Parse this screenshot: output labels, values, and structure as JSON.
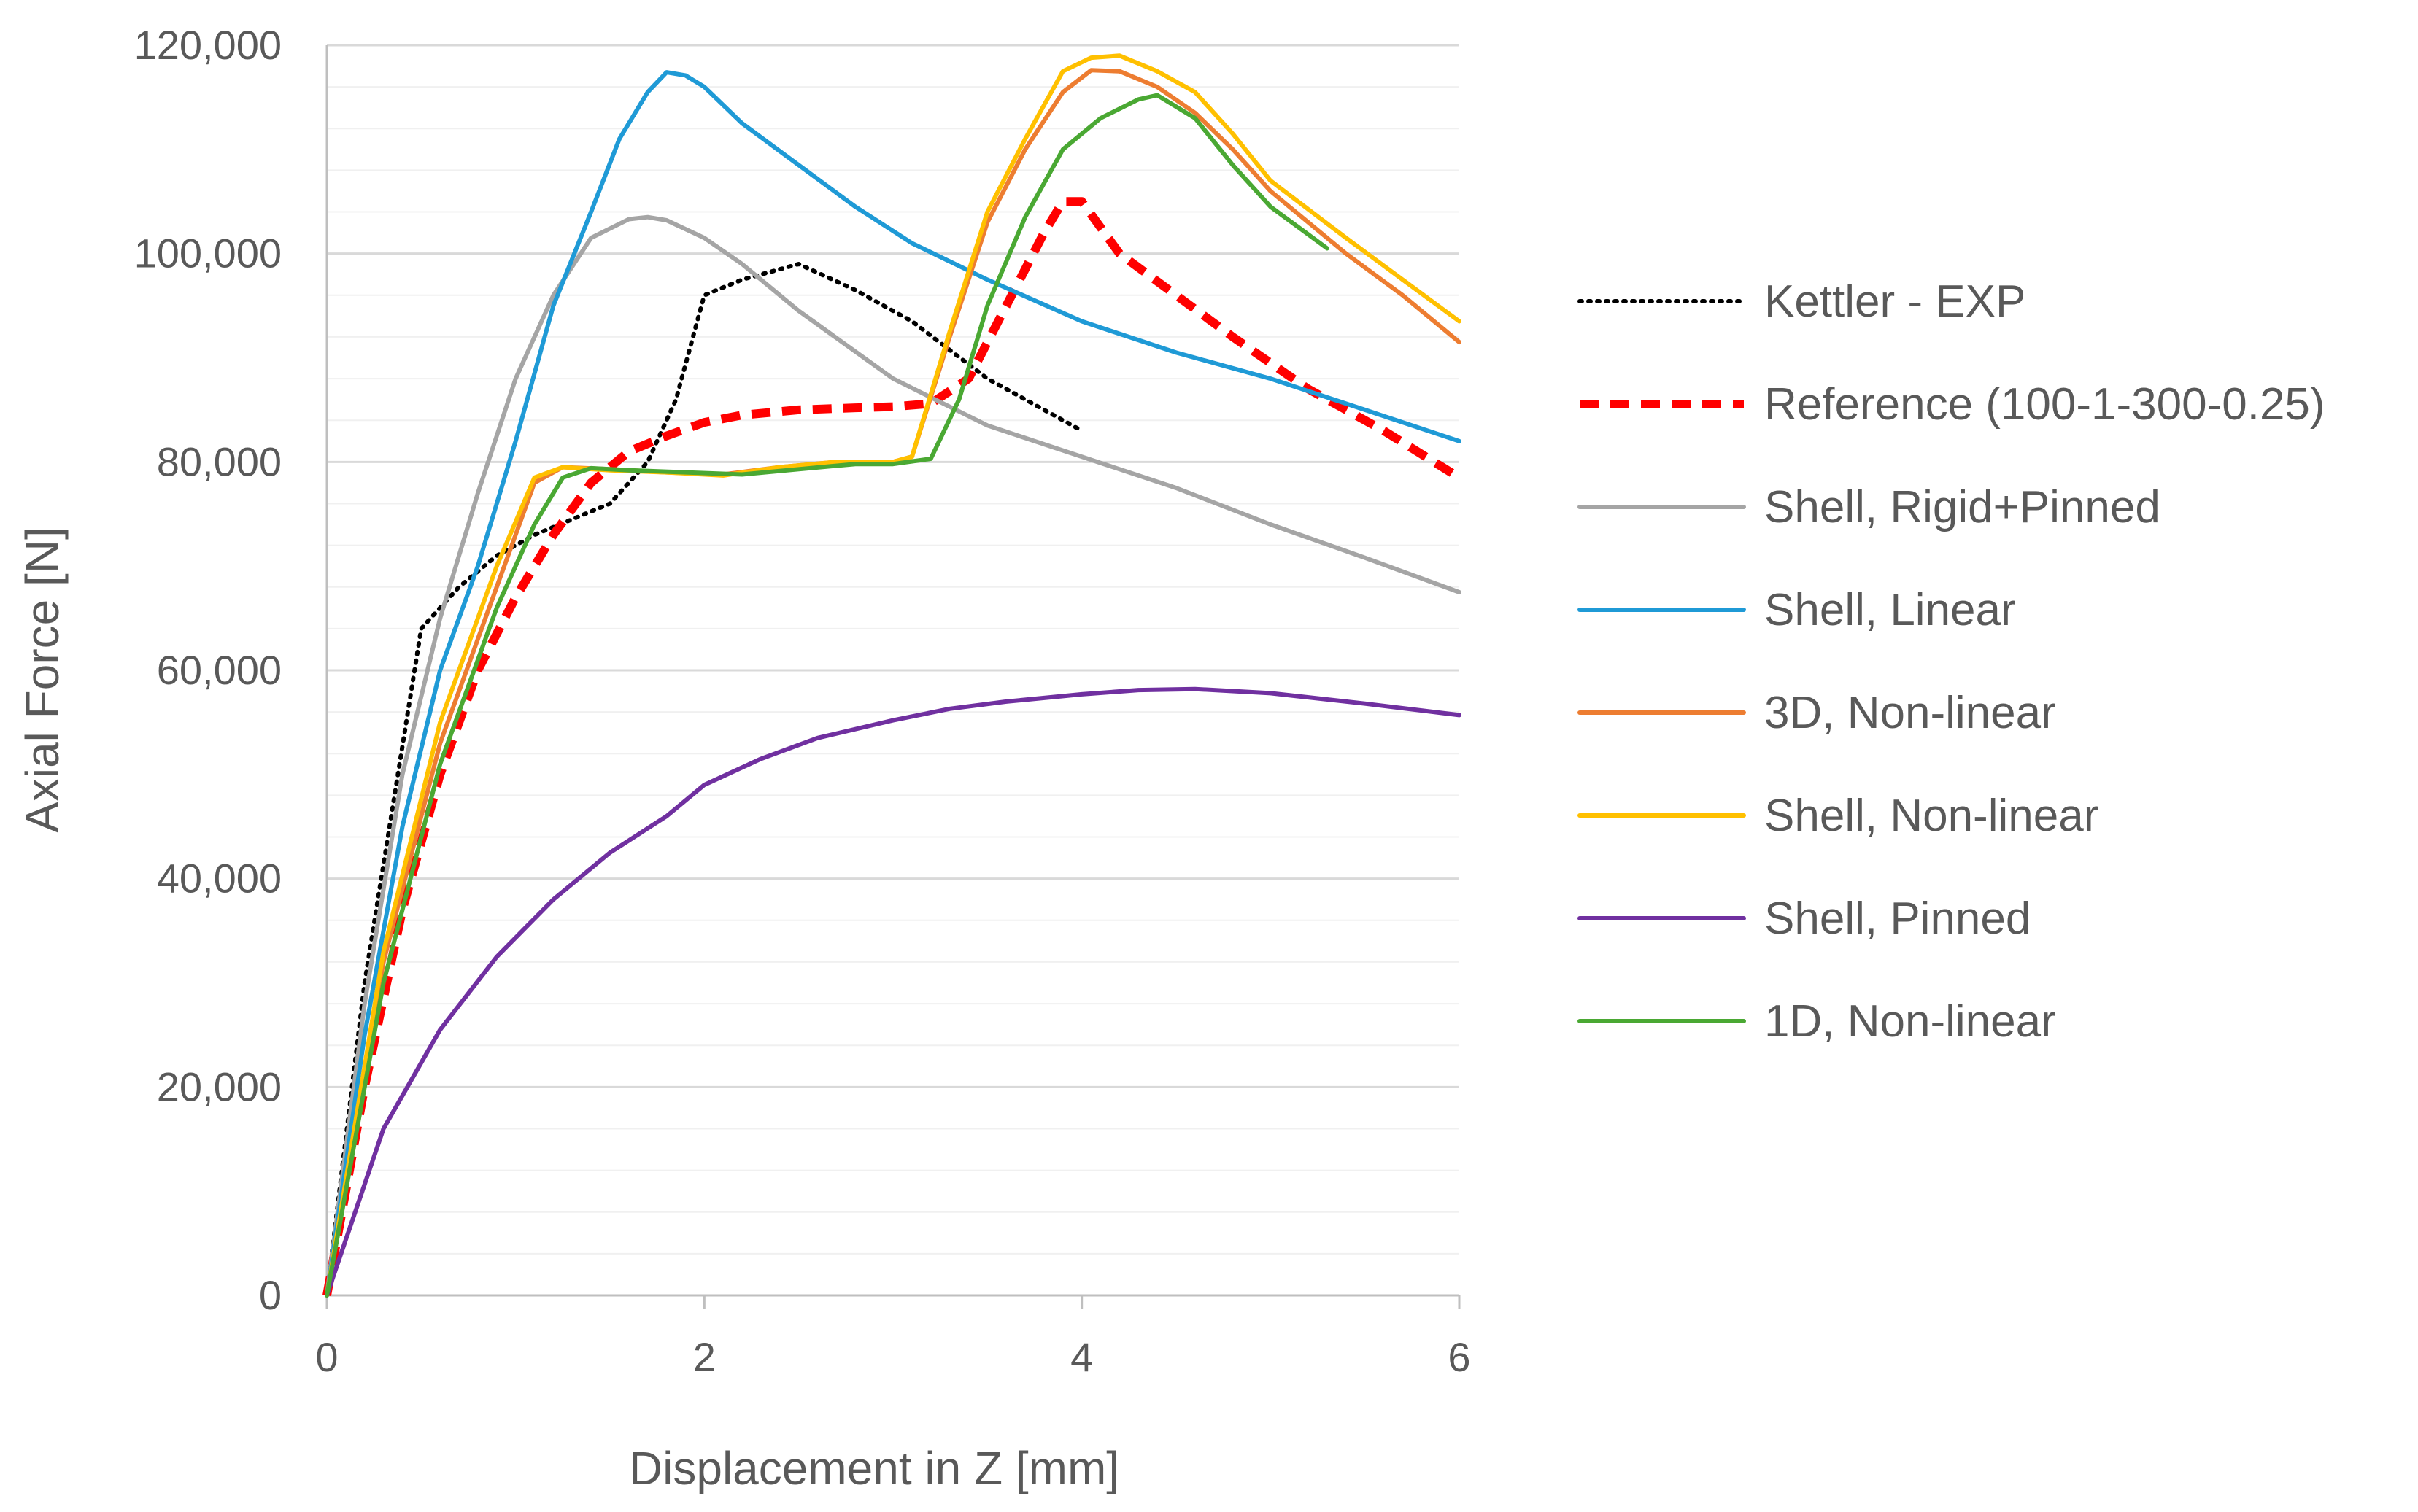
{
  "chart_data": {
    "type": "line",
    "title": "",
    "xlabel": "Displacement in Z [mm]",
    "ylabel": "Axial Force [N]",
    "xlim": [
      0,
      6
    ],
    "ylim": [
      0,
      120000
    ],
    "xticks": [
      0,
      2,
      4,
      6
    ],
    "xtick_labels": [
      "0",
      "2",
      "4",
      "6"
    ],
    "yticks": [
      0,
      20000,
      40000,
      60000,
      80000,
      100000,
      120000
    ],
    "ytick_labels": [
      "0",
      "20,000",
      "40,000",
      "60,000",
      "80,000",
      "100,000",
      "120,000"
    ],
    "grid": "horizontal major and minor",
    "legend_position": "right",
    "series": [
      {
        "name": "Kettler - EXP",
        "color": "#000000",
        "style": "dotted",
        "points": [
          [
            0,
            0
          ],
          [
            0.2,
            30000
          ],
          [
            0.5,
            64000
          ],
          [
            0.7,
            68000
          ],
          [
            0.9,
            71000
          ],
          [
            1.1,
            73000
          ],
          [
            1.3,
            74500
          ],
          [
            1.5,
            76000
          ],
          [
            1.7,
            80000
          ],
          [
            1.85,
            86000
          ],
          [
            2.0,
            96000
          ],
          [
            2.2,
            97500
          ],
          [
            2.5,
            99000
          ],
          [
            2.8,
            96500
          ],
          [
            3.1,
            93500
          ],
          [
            3.5,
            88000
          ],
          [
            3.8,
            85000
          ],
          [
            4.0,
            83000
          ]
        ]
      },
      {
        "name": "Reference (100-1-300-0.25)",
        "color": "#ff0000",
        "style": "dashed",
        "points": [
          [
            0,
            0
          ],
          [
            0.2,
            20000
          ],
          [
            0.4,
            37000
          ],
          [
            0.6,
            50000
          ],
          [
            0.8,
            60000
          ],
          [
            1.0,
            67000
          ],
          [
            1.2,
            73000
          ],
          [
            1.4,
            78000
          ],
          [
            1.6,
            81000
          ],
          [
            1.8,
            82500
          ],
          [
            2.0,
            83800
          ],
          [
            2.2,
            84500
          ],
          [
            2.5,
            85000
          ],
          [
            2.8,
            85200
          ],
          [
            3.0,
            85300
          ],
          [
            3.2,
            85600
          ],
          [
            3.4,
            88000
          ],
          [
            3.6,
            95000
          ],
          [
            3.8,
            102000
          ],
          [
            3.9,
            105000
          ],
          [
            4.0,
            105000
          ],
          [
            4.2,
            100000
          ],
          [
            4.5,
            96000
          ],
          [
            4.8,
            92000
          ],
          [
            5.2,
            87000
          ],
          [
            5.6,
            83000
          ],
          [
            6.0,
            78500
          ]
        ]
      },
      {
        "name": "Shell, Rigid+Pinned",
        "color": "#a5a5a5",
        "style": "solid",
        "points": [
          [
            0,
            0
          ],
          [
            0.2,
            28000
          ],
          [
            0.4,
            50000
          ],
          [
            0.6,
            65000
          ],
          [
            0.8,
            77000
          ],
          [
            1.0,
            88000
          ],
          [
            1.2,
            96000
          ],
          [
            1.4,
            101500
          ],
          [
            1.6,
            103300
          ],
          [
            1.7,
            103500
          ],
          [
            1.8,
            103200
          ],
          [
            2.0,
            101500
          ],
          [
            2.2,
            99000
          ],
          [
            2.5,
            94500
          ],
          [
            3.0,
            88000
          ],
          [
            3.5,
            83500
          ],
          [
            4.0,
            80500
          ],
          [
            4.5,
            77500
          ],
          [
            5.0,
            74000
          ],
          [
            5.5,
            70800
          ],
          [
            6.0,
            67500
          ]
        ]
      },
      {
        "name": "Shell, Linear",
        "color": "#1f9ad6",
        "style": "solid",
        "points": [
          [
            0,
            0
          ],
          [
            0.2,
            25000
          ],
          [
            0.4,
            45000
          ],
          [
            0.6,
            60000
          ],
          [
            0.8,
            70000
          ],
          [
            1.0,
            82000
          ],
          [
            1.2,
            95000
          ],
          [
            1.4,
            104000
          ],
          [
            1.55,
            111000
          ],
          [
            1.7,
            115500
          ],
          [
            1.8,
            117400
          ],
          [
            1.9,
            117100
          ],
          [
            2.0,
            116000
          ],
          [
            2.2,
            112500
          ],
          [
            2.5,
            108500
          ],
          [
            2.8,
            104500
          ],
          [
            3.1,
            101000
          ],
          [
            3.5,
            97500
          ],
          [
            4.0,
            93500
          ],
          [
            4.5,
            90500
          ],
          [
            5.0,
            88000
          ],
          [
            5.5,
            85000
          ],
          [
            6.0,
            82000
          ]
        ]
      },
      {
        "name": "3D, Non-linear",
        "color": "#ed7d31",
        "style": "solid",
        "points": [
          [
            0,
            0
          ],
          [
            0.3,
            32000
          ],
          [
            0.6,
            53000
          ],
          [
            0.9,
            68000
          ],
          [
            1.1,
            78000
          ],
          [
            1.25,
            79500
          ],
          [
            1.5,
            79300
          ],
          [
            1.8,
            79000
          ],
          [
            2.1,
            78800
          ],
          [
            2.4,
            79500
          ],
          [
            2.7,
            80000
          ],
          [
            3.0,
            80000
          ],
          [
            3.1,
            80500
          ],
          [
            3.3,
            92000
          ],
          [
            3.5,
            103000
          ],
          [
            3.7,
            110000
          ],
          [
            3.9,
            115500
          ],
          [
            4.05,
            117600
          ],
          [
            4.2,
            117500
          ],
          [
            4.4,
            116000
          ],
          [
            4.6,
            113500
          ],
          [
            4.8,
            110000
          ],
          [
            5.0,
            106000
          ],
          [
            5.4,
            100000
          ],
          [
            5.7,
            96000
          ],
          [
            6.0,
            91500
          ]
        ]
      },
      {
        "name": "Shell, Non-linear",
        "color": "#ffc000",
        "style": "solid",
        "points": [
          [
            0,
            0
          ],
          [
            0.3,
            33000
          ],
          [
            0.6,
            55000
          ],
          [
            0.9,
            70000
          ],
          [
            1.1,
            78500
          ],
          [
            1.25,
            79500
          ],
          [
            1.5,
            79200
          ],
          [
            1.8,
            79000
          ],
          [
            2.1,
            78700
          ],
          [
            2.4,
            79500
          ],
          [
            2.7,
            80000
          ],
          [
            3.0,
            80000
          ],
          [
            3.1,
            80500
          ],
          [
            3.3,
            92500
          ],
          [
            3.5,
            104000
          ],
          [
            3.7,
            111000
          ],
          [
            3.9,
            117500
          ],
          [
            4.05,
            118800
          ],
          [
            4.2,
            119000
          ],
          [
            4.4,
            117500
          ],
          [
            4.6,
            115500
          ],
          [
            4.8,
            111500
          ],
          [
            5.0,
            107000
          ],
          [
            5.4,
            101500
          ],
          [
            5.7,
            97500
          ],
          [
            6.0,
            93500
          ]
        ]
      },
      {
        "name": "Shell, Pinned",
        "color": "#7030a0",
        "style": "solid",
        "points": [
          [
            0,
            0
          ],
          [
            0.3,
            16000
          ],
          [
            0.6,
            25500
          ],
          [
            0.9,
            32500
          ],
          [
            1.2,
            38000
          ],
          [
            1.5,
            42500
          ],
          [
            1.8,
            46000
          ],
          [
            2.0,
            49000
          ],
          [
            2.3,
            51500
          ],
          [
            2.6,
            53500
          ],
          [
            3.0,
            55200
          ],
          [
            3.3,
            56300
          ],
          [
            3.6,
            57000
          ],
          [
            4.0,
            57700
          ],
          [
            4.3,
            58100
          ],
          [
            4.6,
            58200
          ],
          [
            5.0,
            57800
          ],
          [
            5.5,
            56800
          ],
          [
            6.0,
            55700
          ]
        ]
      },
      {
        "name": "1D, Non-linear",
        "color": "#4aa833",
        "style": "solid",
        "points": [
          [
            0,
            0
          ],
          [
            0.3,
            30000
          ],
          [
            0.6,
            51000
          ],
          [
            0.9,
            66000
          ],
          [
            1.1,
            74000
          ],
          [
            1.25,
            78500
          ],
          [
            1.4,
            79400
          ],
          [
            1.6,
            79200
          ],
          [
            1.9,
            79000
          ],
          [
            2.2,
            78800
          ],
          [
            2.5,
            79300
          ],
          [
            2.8,
            79800
          ],
          [
            3.0,
            79800
          ],
          [
            3.2,
            80300
          ],
          [
            3.35,
            86000
          ],
          [
            3.5,
            95000
          ],
          [
            3.7,
            103500
          ],
          [
            3.9,
            110000
          ],
          [
            4.1,
            113000
          ],
          [
            4.3,
            114800
          ],
          [
            4.4,
            115200
          ],
          [
            4.6,
            113000
          ],
          [
            4.8,
            108500
          ],
          [
            5.0,
            104500
          ],
          [
            5.3,
            100500
          ]
        ]
      }
    ]
  }
}
